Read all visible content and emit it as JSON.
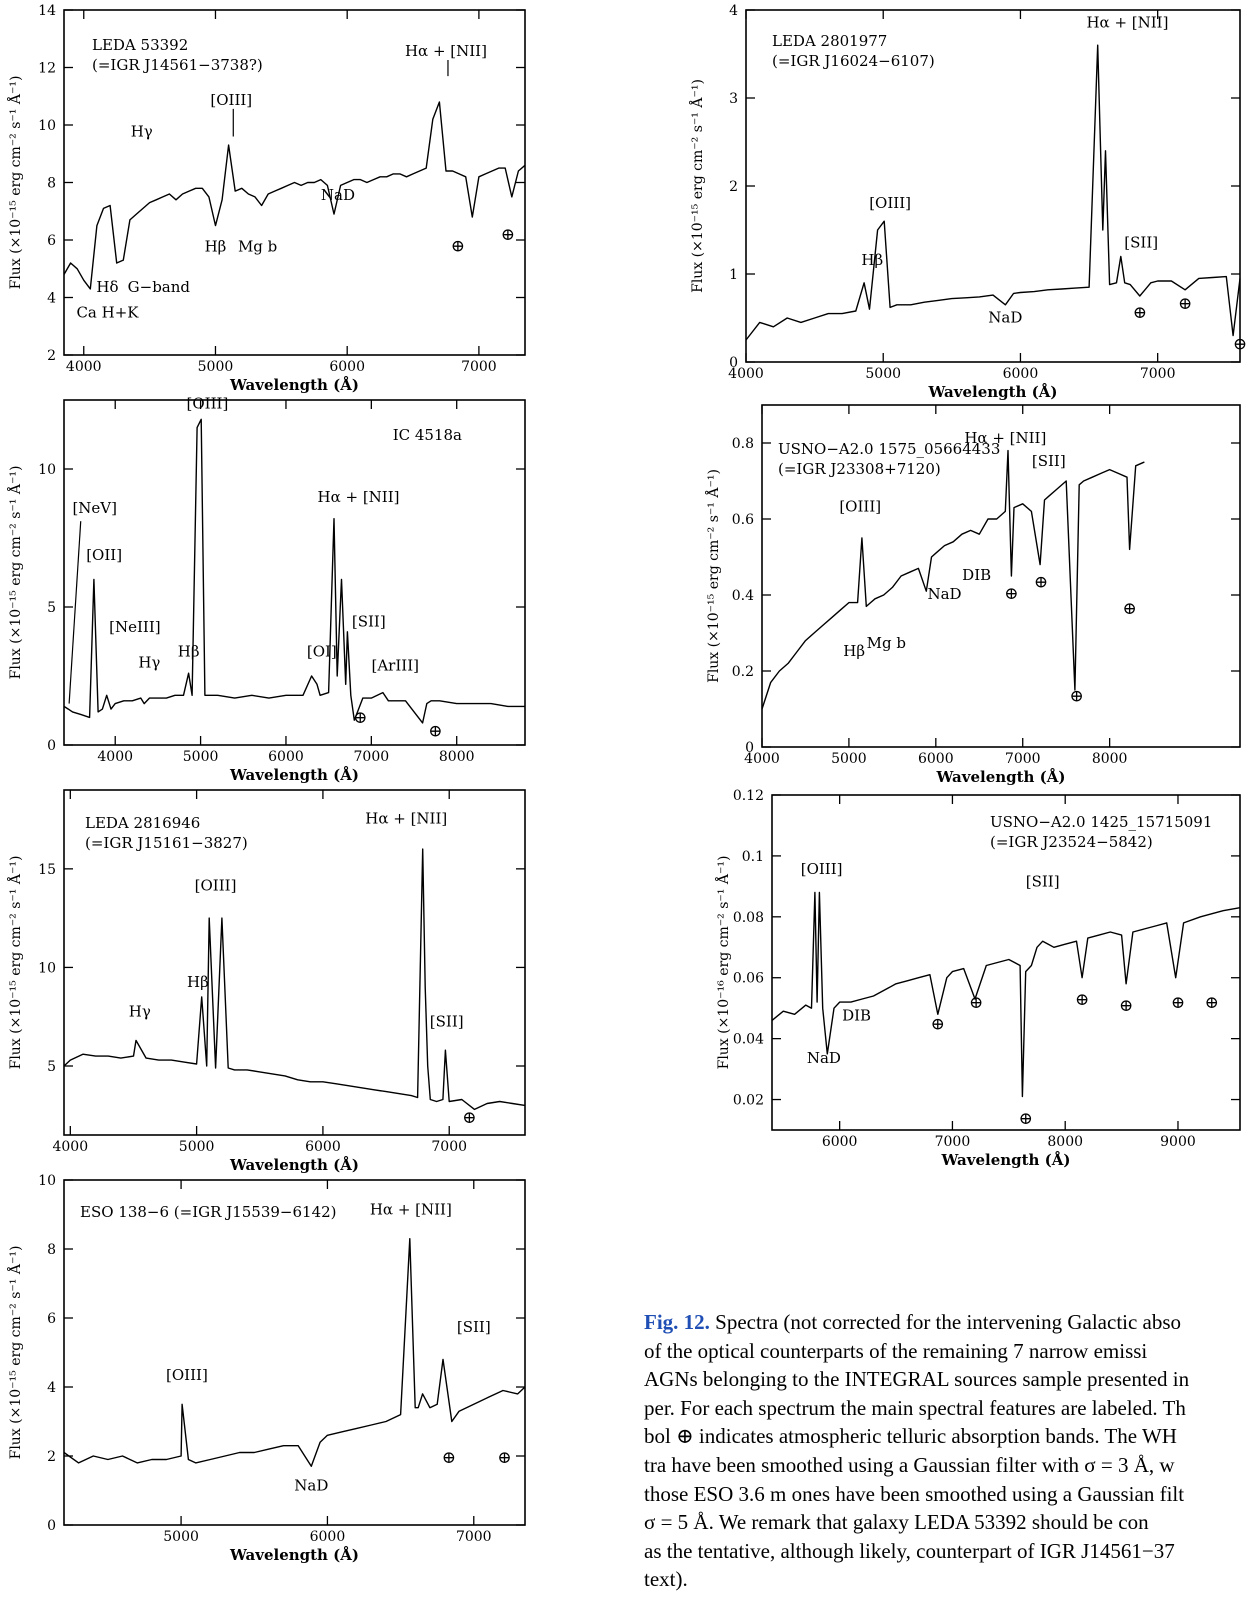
{
  "figure": {
    "caption_label": "Fig. 12.",
    "caption_lines": [
      "Spectra (not corrected for the intervening Galactic abso",
      "of the optical counterparts of the remaining 7 narrow emissi",
      "AGNs belonging to the INTEGRAL sources sample presented in",
      "per. For each spectrum the main spectral features are labeled. Th",
      "bol ⊕ indicates atmospheric telluric absorption bands. The WH",
      "tra have been smoothed using a Gaussian filter with σ = 3 Å, w",
      "those ESO 3.6 m ones have been smoothed using a Gaussian filt",
      "σ = 5 Å. We remark that galaxy LEDA 53392 should be con",
      "as the tentative, although likely, counterpart of IGR J14561−37",
      "text)."
    ]
  },
  "chart_data": [
    {
      "type": "line",
      "id": "leda53392",
      "name_lines": [
        "LEDA 53392",
        "(=IGR J14561−3738?)"
      ],
      "xlabel": "Wavelength (Å)",
      "ylabel": "Flux (×10⁻¹⁵ erg cm⁻² s⁻¹ Å⁻¹)",
      "xlim": [
        3850,
        7350
      ],
      "ylim": [
        2,
        14
      ],
      "xticks": [
        4000,
        5000,
        6000,
        7000
      ],
      "yticks": [
        2,
        4,
        6,
        8,
        10,
        12,
        14
      ],
      "x": [
        3850,
        3900,
        3950,
        4000,
        4050,
        4100,
        4150,
        4200,
        4250,
        4300,
        4350,
        4400,
        4450,
        4500,
        4550,
        4600,
        4650,
        4700,
        4750,
        4800,
        4850,
        4900,
        4950,
        5000,
        5050,
        5100,
        5150,
        5200,
        5250,
        5300,
        5350,
        5400,
        5450,
        5500,
        5550,
        5600,
        5650,
        5700,
        5750,
        5800,
        5850,
        5900,
        5950,
        6000,
        6050,
        6100,
        6150,
        6200,
        6250,
        6300,
        6350,
        6400,
        6450,
        6500,
        6550,
        6600,
        6650,
        6700,
        6750,
        6800,
        6850,
        6900,
        6950,
        7000,
        7050,
        7100,
        7150,
        7200,
        7250,
        7300,
        7350
      ],
      "flux": [
        4.8,
        5.2,
        5.0,
        4.6,
        4.3,
        6.5,
        7.1,
        7.2,
        5.2,
        5.3,
        6.7,
        6.9,
        7.1,
        7.3,
        7.4,
        7.5,
        7.6,
        7.4,
        7.6,
        7.7,
        7.8,
        7.8,
        7.5,
        6.5,
        7.4,
        9.3,
        7.7,
        7.8,
        7.6,
        7.5,
        7.2,
        7.6,
        7.7,
        7.8,
        7.9,
        8.0,
        7.9,
        8.0,
        8.0,
        8.1,
        7.9,
        6.9,
        7.9,
        8.0,
        8.1,
        8.1,
        8.0,
        8.1,
        8.2,
        8.2,
        8.3,
        8.3,
        8.2,
        8.3,
        8.4,
        8.5,
        10.2,
        10.8,
        8.4,
        8.4,
        8.3,
        8.2,
        6.8,
        8.2,
        8.3,
        8.4,
        8.5,
        8.5,
        7.5,
        8.4,
        8.6
      ],
      "annotations": [
        "Hα + [NII]",
        "[OIII]",
        "Hγ",
        "Hβ",
        "Mg b",
        "NaD",
        "Hδ",
        "G−band",
        "Ca H+K",
        "⊕",
        "⊕"
      ]
    },
    {
      "type": "line",
      "id": "ic4518a",
      "name_lines": [
        "IC 4518a"
      ],
      "xlabel": "Wavelength (Å)",
      "ylabel": "Flux (×10⁻¹⁵ erg cm⁻² s⁻¹ Å⁻¹)",
      "xlim": [
        3400,
        8800
      ],
      "ylim": [
        0,
        12.5
      ],
      "xticks": [
        4000,
        5000,
        6000,
        7000,
        8000
      ],
      "yticks": [
        0,
        5,
        10
      ],
      "x": [
        3400,
        3450,
        3500,
        3600,
        3700,
        3750,
        3800,
        3850,
        3900,
        3950,
        4000,
        4100,
        4200,
        4300,
        4340,
        4400,
        4500,
        4600,
        4700,
        4800,
        4860,
        4900,
        4959,
        5007,
        5050,
        5100,
        5200,
        5400,
        5600,
        5800,
        6000,
        6200,
        6300,
        6364,
        6400,
        6500,
        6563,
        6600,
        6650,
        6700,
        6720,
        6760,
        6800,
        6900,
        7000,
        7136,
        7200,
        7400,
        7600,
        7650,
        7700,
        7800,
        8000,
        8200,
        8400,
        8600,
        8800
      ],
      "flux": [
        1.4,
        1.3,
        1.2,
        1.1,
        1.0,
        6.0,
        1.2,
        1.3,
        1.8,
        1.3,
        1.5,
        1.6,
        1.6,
        1.7,
        1.5,
        1.7,
        1.7,
        1.7,
        1.8,
        1.8,
        2.6,
        1.8,
        11.5,
        11.8,
        1.8,
        1.8,
        1.8,
        1.7,
        1.8,
        1.7,
        1.8,
        1.8,
        2.5,
        2.2,
        1.8,
        1.9,
        8.2,
        2.5,
        6.0,
        2.2,
        4.1,
        1.8,
        0.9,
        1.7,
        1.7,
        1.9,
        1.6,
        1.6,
        0.8,
        1.5,
        1.6,
        1.6,
        1.5,
        1.5,
        1.5,
        1.4,
        1.4
      ],
      "annotations": [
        "[OIII]",
        "[NeV]",
        "[OII]",
        "[NeIII]",
        "Hγ",
        "Hβ",
        "Hα + [NII]",
        "[SII]",
        "[OI]",
        "[ArIII]",
        "⊕",
        "⊕"
      ]
    },
    {
      "type": "line",
      "id": "leda2816946",
      "name_lines": [
        "LEDA 2816946",
        "(=IGR J15161−3827)"
      ],
      "xlabel": "Wavelength (Å)",
      "ylabel": "Flux (×10⁻¹⁵ erg cm⁻² s⁻¹ Å⁻¹)",
      "xlim": [
        3950,
        7600
      ],
      "ylim": [
        1.5,
        19
      ],
      "xticks": [
        4000,
        5000,
        6000,
        7000
      ],
      "yticks": [
        5,
        10,
        15
      ],
      "x": [
        3950,
        4000,
        4100,
        4200,
        4300,
        4400,
        4500,
        4520,
        4600,
        4700,
        4800,
        4900,
        5000,
        5040,
        5080,
        5100,
        5150,
        5200,
        5250,
        5300,
        5400,
        5500,
        5600,
        5700,
        5800,
        5900,
        6000,
        6100,
        6200,
        6300,
        6400,
        6500,
        6600,
        6700,
        6750,
        6790,
        6810,
        6830,
        6850,
        6900,
        6950,
        6970,
        7000,
        7100,
        7200,
        7300,
        7400,
        7500,
        7600
      ],
      "flux": [
        5.0,
        5.3,
        5.6,
        5.5,
        5.5,
        5.4,
        5.5,
        6.3,
        5.4,
        5.3,
        5.3,
        5.2,
        5.1,
        8.5,
        5.0,
        12.5,
        4.9,
        12.5,
        4.9,
        4.8,
        4.8,
        4.7,
        4.6,
        4.5,
        4.3,
        4.2,
        4.2,
        4.1,
        4.0,
        3.9,
        3.8,
        3.7,
        3.6,
        3.5,
        3.4,
        16.0,
        9.0,
        5.0,
        3.3,
        3.2,
        3.3,
        5.8,
        3.2,
        3.3,
        2.8,
        3.1,
        3.2,
        3.1,
        3.0
      ],
      "annotations": [
        "Hα + [NII]",
        "[OIII]",
        "Hβ",
        "Hγ",
        "[SII]",
        "⊕"
      ]
    },
    {
      "type": "line",
      "id": "eso1386",
      "name_lines": [
        "ESO 138−6 (=IGR J15539−6142)"
      ],
      "xlabel": "Wavelength (Å)",
      "ylabel": "Flux (×10⁻¹⁵ erg cm⁻² s⁻¹ Å⁻¹)",
      "xlim": [
        4200,
        7350
      ],
      "ylim": [
        0,
        10
      ],
      "xticks": [
        5000,
        6000,
        7000
      ],
      "yticks": [
        0,
        2,
        4,
        6,
        8,
        10
      ],
      "x": [
        4200,
        4300,
        4400,
        4500,
        4600,
        4700,
        4800,
        4900,
        5000,
        5007,
        5050,
        5100,
        5200,
        5300,
        5400,
        5500,
        5600,
        5700,
        5800,
        5890,
        5950,
        6000,
        6100,
        6200,
        6300,
        6400,
        6500,
        6600,
        6563,
        6620,
        6650,
        6700,
        6750,
        6790,
        6850,
        6900,
        7000,
        7100,
        7200,
        7300,
        7350
      ],
      "flux": [
        2.1,
        1.8,
        2.0,
        1.9,
        2.0,
        1.8,
        1.9,
        1.9,
        2.0,
        3.5,
        1.9,
        1.8,
        1.9,
        2.0,
        2.1,
        2.1,
        2.2,
        2.3,
        2.3,
        1.7,
        2.4,
        2.6,
        2.7,
        2.8,
        2.9,
        3.0,
        3.2,
        3.4,
        8.3,
        3.4,
        3.8,
        3.4,
        3.5,
        4.8,
        3.0,
        3.3,
        3.5,
        3.7,
        3.9,
        3.8,
        4.0
      ],
      "annotations": [
        "Hα + [NII]",
        "[SII]",
        "[OIII]",
        "NaD",
        "⊕",
        "⊕"
      ]
    },
    {
      "type": "line",
      "id": "leda2801977",
      "name_lines": [
        "LEDA 2801977",
        "(=IGR J16024−6107)"
      ],
      "xlabel": "Wavelength (Å)",
      "ylabel": "Flux (×10⁻¹⁵ erg cm⁻² s⁻¹ Å⁻¹)",
      "xlim": [
        4000,
        7600
      ],
      "ylim": [
        0,
        4
      ],
      "xticks": [
        4000,
        5000,
        6000,
        7000
      ],
      "yticks": [
        0,
        1,
        2,
        3,
        4
      ],
      "x": [
        4000,
        4100,
        4200,
        4300,
        4400,
        4500,
        4600,
        4700,
        4800,
        4861,
        4900,
        4959,
        5007,
        5050,
        5100,
        5200,
        5300,
        5400,
        5500,
        5600,
        5700,
        5800,
        5890,
        5950,
        6000,
        6100,
        6200,
        6300,
        6400,
        6500,
        6563,
        6600,
        6620,
        6650,
        6700,
        6731,
        6760,
        6800,
        6870,
        6950,
        7000,
        7100,
        7200,
        7300,
        7400,
        7500,
        7550,
        7600
      ],
      "flux": [
        0.25,
        0.45,
        0.4,
        0.5,
        0.45,
        0.5,
        0.55,
        0.55,
        0.58,
        0.9,
        0.6,
        1.5,
        1.6,
        0.62,
        0.65,
        0.65,
        0.68,
        0.7,
        0.72,
        0.73,
        0.74,
        0.76,
        0.65,
        0.78,
        0.79,
        0.8,
        0.82,
        0.83,
        0.84,
        0.85,
        3.6,
        1.5,
        2.4,
        0.88,
        0.9,
        1.2,
        0.9,
        0.88,
        0.75,
        0.9,
        0.92,
        0.92,
        0.82,
        0.95,
        0.96,
        0.97,
        0.3,
        0.95
      ],
      "annotations": [
        "Hα + [NII]",
        "[OIII]",
        "[SII]",
        "Hβ",
        "NaD",
        "⊕",
        "⊕",
        "⊕"
      ]
    },
    {
      "type": "line",
      "id": "usno1575",
      "name_lines": [
        "USNO−A2.0 1575_05664433",
        "(=IGR J23308+7120)"
      ],
      "xlabel": "Wavelength (Å)",
      "ylabel": "Flux (×10⁻¹⁵ erg cm⁻² s⁻¹ Å⁻¹)",
      "xlim": [
        4000,
        9500
      ],
      "ylim": [
        0,
        0.9
      ],
      "xticks": [
        4000,
        5000,
        6000,
        7000,
        8000
      ],
      "yticks": [
        0,
        0.2,
        0.4,
        0.6,
        0.8
      ],
      "x": [
        4000,
        4100,
        4200,
        4300,
        4400,
        4500,
        4600,
        4700,
        4800,
        4900,
        5000,
        5100,
        5150,
        5200,
        5250,
        5300,
        5400,
        5500,
        5600,
        5700,
        5800,
        5890,
        5950,
        6000,
        6100,
        6200,
        6300,
        6400,
        6500,
        6600,
        6700,
        6800,
        6830,
        6870,
        6900,
        7000,
        7100,
        7200,
        7250,
        7300,
        7400,
        7500,
        7600,
        7650,
        7700,
        7800,
        7900,
        8000,
        8100,
        8200,
        8230,
        8300,
        8400
      ],
      "flux": [
        0.1,
        0.17,
        0.2,
        0.22,
        0.25,
        0.28,
        0.3,
        0.32,
        0.34,
        0.36,
        0.38,
        0.38,
        0.55,
        0.37,
        0.38,
        0.39,
        0.4,
        0.42,
        0.45,
        0.46,
        0.47,
        0.41,
        0.5,
        0.51,
        0.53,
        0.54,
        0.56,
        0.57,
        0.56,
        0.6,
        0.6,
        0.62,
        0.78,
        0.45,
        0.63,
        0.64,
        0.62,
        0.48,
        0.65,
        0.66,
        0.68,
        0.7,
        0.15,
        0.69,
        0.7,
        0.71,
        0.72,
        0.73,
        0.72,
        0.71,
        0.52,
        0.74,
        0.75
      ],
      "annotations": [
        "Hα + [NII]",
        "[SII]",
        "[OIII]",
        "DIB",
        "NaD",
        "Hβ",
        "Mg b",
        "⊕",
        "⊕",
        "⊕",
        "⊕"
      ]
    },
    {
      "type": "line",
      "id": "usno1425",
      "name_lines": [
        "USNO−A2.0 1425_15715091",
        "(=IGR J23524−5842)"
      ],
      "xlabel": "Wavelength (Å)",
      "ylabel": "Flux (×10⁻¹⁶ erg cm⁻² s⁻¹ Å⁻¹)",
      "xlim": [
        5400,
        9550
      ],
      "ylim": [
        0.01,
        0.12
      ],
      "xticks": [
        6000,
        7000,
        8000,
        9000
      ],
      "yticks": [
        0.02,
        0.04,
        0.06,
        0.08,
        0.1,
        0.12
      ],
      "x": [
        5400,
        5500,
        5600,
        5700,
        5750,
        5780,
        5800,
        5820,
        5850,
        5890,
        5950,
        6000,
        6100,
        6200,
        6300,
        6400,
        6500,
        6600,
        6700,
        6800,
        6870,
        6950,
        7000,
        7100,
        7200,
        7300,
        7400,
        7500,
        7600,
        7620,
        7650,
        7700,
        7750,
        7800,
        7850,
        7900,
        8000,
        8100,
        8150,
        8200,
        8300,
        8400,
        8500,
        8540,
        8600,
        8700,
        8800,
        8900,
        8980,
        9050,
        9200,
        9400,
        9550
      ],
      "flux": [
        0.046,
        0.049,
        0.048,
        0.051,
        0.05,
        0.088,
        0.052,
        0.088,
        0.05,
        0.035,
        0.05,
        0.052,
        0.052,
        0.053,
        0.054,
        0.056,
        0.058,
        0.059,
        0.06,
        0.061,
        0.048,
        0.06,
        0.062,
        0.063,
        0.053,
        0.064,
        0.065,
        0.066,
        0.064,
        0.021,
        0.062,
        0.064,
        0.07,
        0.072,
        0.071,
        0.07,
        0.071,
        0.072,
        0.06,
        0.073,
        0.074,
        0.075,
        0.074,
        0.058,
        0.075,
        0.076,
        0.077,
        0.078,
        0.06,
        0.078,
        0.08,
        0.082,
        0.083
      ],
      "annotations": [
        "[OIII]",
        "[SII]",
        "DIB",
        "NaD",
        "⊕",
        "⊕",
        "⊕",
        "⊕",
        "⊕",
        "⊕",
        "⊕"
      ]
    }
  ]
}
